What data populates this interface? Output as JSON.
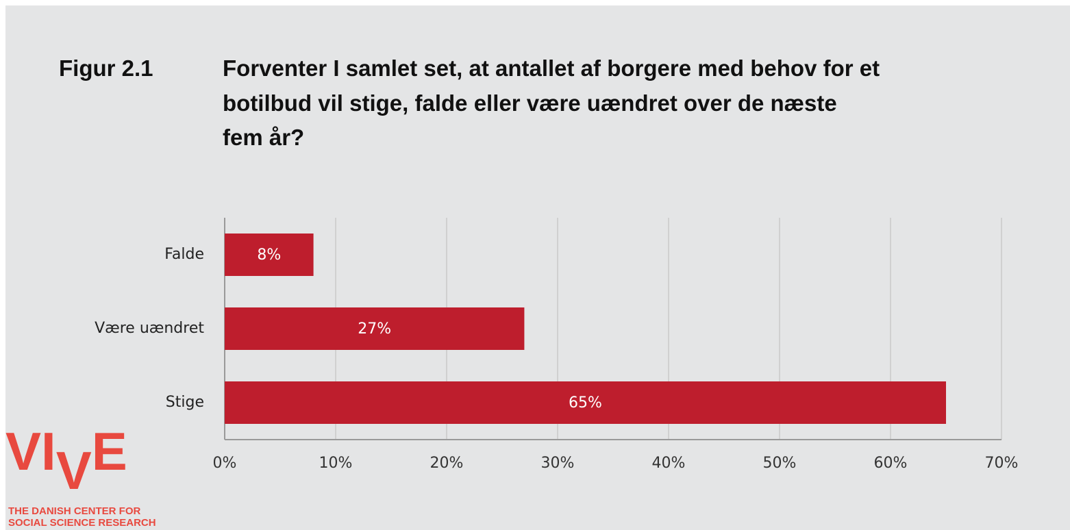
{
  "chart_data": {
    "type": "bar",
    "orientation": "horizontal",
    "figure_label": "Figur 2.1",
    "title": [
      "Forventer I samlet set, at antallet af borgere med behov for et",
      "botilbud vil stige, falde eller være uændret over de næste",
      "fem år?"
    ],
    "categories": [
      "Falde",
      "Være uændret",
      "Stige"
    ],
    "values": [
      8,
      27,
      65
    ],
    "value_labels": [
      "8%",
      "27%",
      "65%"
    ],
    "color": "#be1e2d",
    "xlim": [
      0,
      70
    ],
    "xticks": [
      {
        "value": 0,
        "label": "0%"
      },
      {
        "value": 10,
        "label": "10%"
      },
      {
        "value": 20,
        "label": "20%"
      },
      {
        "value": 30,
        "label": "30%"
      },
      {
        "value": 40,
        "label": "40%"
      },
      {
        "value": 50,
        "label": "50%"
      },
      {
        "value": 60,
        "label": "60%"
      },
      {
        "value": 70,
        "label": "70%"
      }
    ],
    "grid": true
  },
  "logo": {
    "name": "VIVE",
    "tagline": [
      "THE DANISH CENTER FOR",
      "SOCIAL SCIENCE RESEARCH"
    ]
  }
}
